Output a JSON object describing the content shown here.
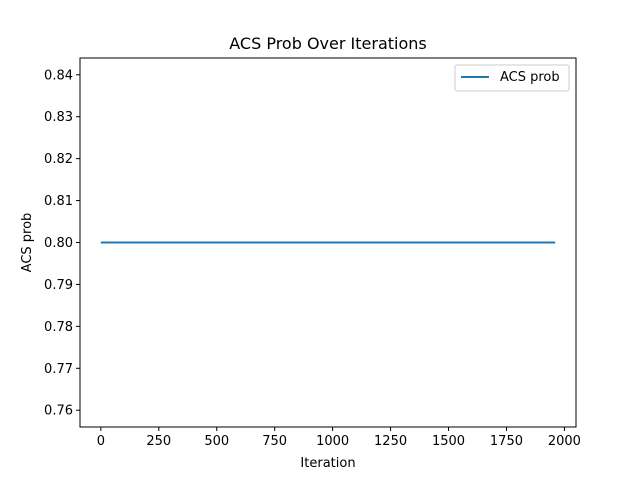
{
  "chart_data": {
    "type": "line",
    "title": "ACS Prob Over Iterations",
    "xlabel": "Iteration",
    "ylabel": "ACS prob",
    "xlim": [
      -90,
      2050
    ],
    "ylim": [
      0.756,
      0.844
    ],
    "xticks": [
      0,
      250,
      500,
      750,
      1000,
      1250,
      1500,
      1750,
      2000
    ],
    "yticks": [
      0.76,
      0.77,
      0.78,
      0.79,
      0.8,
      0.81,
      0.82,
      0.83,
      0.84
    ],
    "xtick_labels": [
      "0",
      "250",
      "500",
      "750",
      "1000",
      "1250",
      "1500",
      "1750",
      "2000"
    ],
    "ytick_labels": [
      "0.76",
      "0.77",
      "0.78",
      "0.79",
      "0.80",
      "0.81",
      "0.82",
      "0.83",
      "0.84"
    ],
    "grid": false,
    "legend_position": "top-right",
    "series": [
      {
        "name": "ACS prob",
        "color": "#1f77b4",
        "x": [
          0,
          1960
        ],
        "y": [
          0.8,
          0.8
        ]
      }
    ]
  }
}
